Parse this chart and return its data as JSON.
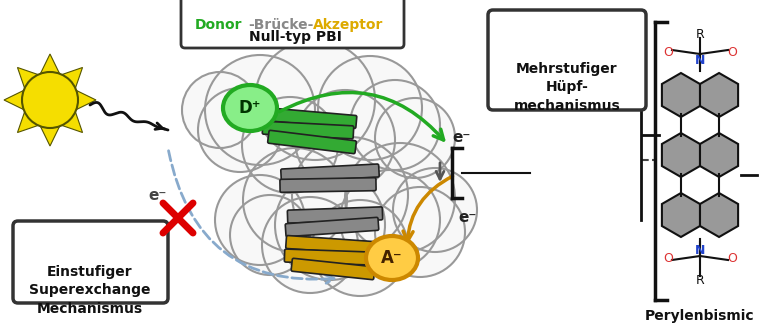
{
  "background_color": "#ffffff",
  "title_donor_color": "#22aa22",
  "title_bridge_color": "#888888",
  "title_acceptor_color": "#ddaa00",
  "box1_text": "Mehrstufiger\nHüpf-\nmechanismus",
  "box2_text": "Einstufiger\nSuperexchange\nMechanismus",
  "label_perylene": "Perylenbismic",
  "donor_label": "D⁺",
  "acceptor_label": "A⁻",
  "electron_label": "e⁻",
  "sun_color": "#f5de00",
  "sun_ray_color": "#f5de00",
  "sun_outline": "#555500",
  "donor_circle_color_inner": "#88ee88",
  "donor_circle_color_outer": "#22aa22",
  "acceptor_circle_color_inner": "#ffcc44",
  "acceptor_circle_color_outer": "#cc8800",
  "cloud_color": "#f8f8f8",
  "cloud_edge_color": "#999999",
  "arrow_green_color": "#22aa22",
  "arrow_gold_color": "#cc8800",
  "dashed_arrow_color": "#88aacc",
  "cross_color": "#dd0000",
  "bracket_color": "#111111",
  "mol_gray": "#999999",
  "mol_N_color": "#2244cc",
  "mol_O_color": "#dd3333",
  "mol_line_color": "#111111",
  "green_mol_color": "#33aa33",
  "gray_mol_color": "#888888",
  "gold_mol_color": "#cc9900",
  "wave_color": "#111111"
}
